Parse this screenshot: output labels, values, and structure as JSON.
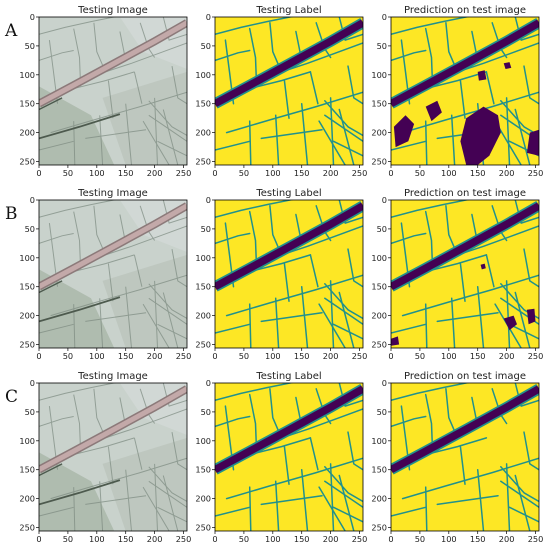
{
  "figure": {
    "row_labels": [
      "A",
      "B",
      "C"
    ],
    "column_titles": [
      "Testing Image",
      "Testing Label",
      "Prediction on test image"
    ],
    "colors": {
      "label_yellow": "#fde725",
      "label_teal": "#21918c",
      "label_purple": "#440154",
      "photo_light": "#c9d2cc",
      "photo_road": "#c3a9a9"
    }
  },
  "chart_data": [
    {
      "type": "heatmap",
      "row": "A",
      "title": "Testing Image",
      "xlim": [
        0,
        256
      ],
      "ylim": [
        256,
        0
      ],
      "xticks": [
        0,
        50,
        100,
        150,
        200,
        250
      ],
      "yticks": [
        0,
        50,
        100,
        150,
        200,
        250
      ]
    },
    {
      "type": "heatmap",
      "row": "A",
      "title": "Testing Label",
      "xlim": [
        0,
        256
      ],
      "ylim": [
        256,
        0
      ],
      "xticks": [
        0,
        50,
        100,
        150,
        200,
        250
      ],
      "yticks": [
        0,
        50,
        100,
        150,
        200,
        250
      ]
    },
    {
      "type": "heatmap",
      "row": "A",
      "title": "Prediction on test image",
      "xlim": [
        0,
        256
      ],
      "ylim": [
        256,
        0
      ],
      "xticks": [
        0,
        50,
        100,
        150,
        200,
        250
      ],
      "yticks": [
        0,
        50,
        100,
        150,
        200,
        250
      ]
    },
    {
      "type": "heatmap",
      "row": "B",
      "title": "Testing Image",
      "xlim": [
        0,
        256
      ],
      "ylim": [
        256,
        0
      ],
      "xticks": [
        0,
        50,
        100,
        150,
        200,
        250
      ],
      "yticks": [
        0,
        50,
        100,
        150,
        200,
        250
      ]
    },
    {
      "type": "heatmap",
      "row": "B",
      "title": "Testing Label",
      "xlim": [
        0,
        256
      ],
      "ylim": [
        256,
        0
      ],
      "xticks": [
        0,
        50,
        100,
        150,
        200,
        250
      ],
      "yticks": [
        0,
        50,
        100,
        150,
        200,
        250
      ]
    },
    {
      "type": "heatmap",
      "row": "B",
      "title": "Prediction on test image",
      "xlim": [
        0,
        256
      ],
      "ylim": [
        256,
        0
      ],
      "xticks": [
        0,
        50,
        100,
        150,
        200,
        250
      ],
      "yticks": [
        0,
        50,
        100,
        150,
        200,
        250
      ]
    },
    {
      "type": "heatmap",
      "row": "C",
      "title": "Testing Image",
      "xlim": [
        0,
        256
      ],
      "ylim": [
        256,
        0
      ],
      "xticks": [
        0,
        50,
        100,
        150,
        200,
        250
      ],
      "yticks": [
        0,
        50,
        100,
        150,
        200,
        250
      ]
    },
    {
      "type": "heatmap",
      "row": "C",
      "title": "Testing Label",
      "xlim": [
        0,
        256
      ],
      "ylim": [
        256,
        0
      ],
      "xticks": [
        0,
        50,
        100,
        150,
        200,
        250
      ],
      "yticks": [
        0,
        50,
        100,
        150,
        200,
        250
      ]
    },
    {
      "type": "heatmap",
      "row": "C",
      "title": "Prediction on test image",
      "xlim": [
        0,
        256
      ],
      "ylim": [
        256,
        0
      ],
      "xticks": [
        0,
        50,
        100,
        150,
        200,
        250
      ],
      "yticks": [
        0,
        50,
        100,
        150,
        200,
        250
      ]
    }
  ]
}
